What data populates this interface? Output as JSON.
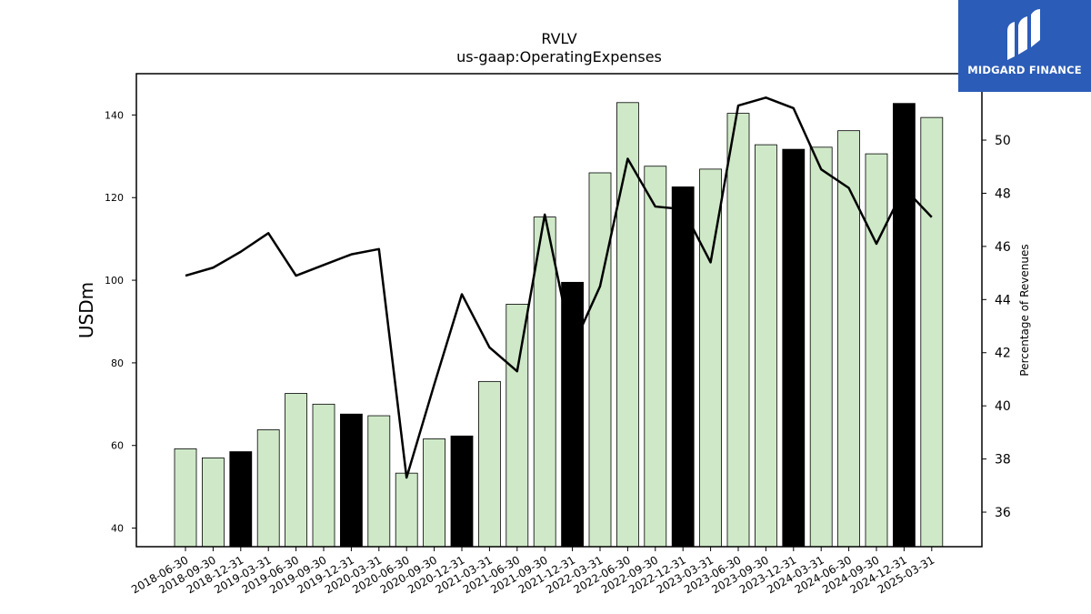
{
  "logo": {
    "text": "MIDGARD FINANCE"
  },
  "colors": {
    "bar_light": "#cfe9c8",
    "bar_dark": "#000000",
    "line": "#000000",
    "logo_bg": "#2b5cb8"
  },
  "chart_data": {
    "type": "bar",
    "title": "RVLV",
    "subtitle": "us-gaap:OperatingExpenses",
    "ylabel": "USDm",
    "y2label": "Percentage of Revenues",
    "ylim": [
      35.5,
      150
    ],
    "y2lim": [
      34.7,
      52.5
    ],
    "yticks": [
      40,
      60,
      80,
      100,
      120,
      140
    ],
    "y2ticks": [
      36,
      38,
      40,
      42,
      44,
      46,
      48,
      50
    ],
    "categories": [
      "2018-06-30",
      "2018-09-30",
      "2018-12-31",
      "2019-03-31",
      "2019-06-30",
      "2019-09-30",
      "2019-12-31",
      "2020-03-31",
      "2020-06-30",
      "2020-09-30",
      "2020-12-31",
      "2021-03-31",
      "2021-06-30",
      "2021-09-30",
      "2021-12-31",
      "2022-03-31",
      "2022-06-30",
      "2022-09-30",
      "2022-12-31",
      "2023-03-31",
      "2023-06-30",
      "2023-09-30",
      "2023-12-31",
      "2024-03-31",
      "2024-06-30",
      "2024-09-30",
      "2024-12-31",
      "2025-03-31"
    ],
    "series": [
      {
        "type": "bar",
        "values": [
          59.2,
          57.0,
          58.5,
          63.8,
          72.6,
          70.0,
          67.6,
          67.2,
          53.3,
          61.6,
          62.3,
          75.5,
          94.2,
          115.3,
          99.5,
          126.0,
          143.0,
          127.6,
          122.6,
          126.9,
          140.4,
          132.8,
          131.7,
          132.2,
          136.2,
          130.6,
          142.8,
          139.4
        ],
        "highlight": [
          false,
          false,
          true,
          false,
          false,
          false,
          true,
          false,
          false,
          false,
          true,
          false,
          false,
          false,
          true,
          false,
          false,
          false,
          true,
          false,
          false,
          false,
          true,
          false,
          false,
          false,
          true,
          false
        ]
      },
      {
        "type": "line",
        "axis": "right",
        "values": [
          44.9,
          45.2,
          45.8,
          46.5,
          44.9,
          45.3,
          45.7,
          45.9,
          37.3,
          40.8,
          44.2,
          42.2,
          41.3,
          47.2,
          42.2,
          44.5,
          49.3,
          47.5,
          47.4,
          45.4,
          51.3,
          51.6,
          51.2,
          48.9,
          48.2,
          46.1,
          48.2,
          47.1
        ]
      }
    ]
  }
}
